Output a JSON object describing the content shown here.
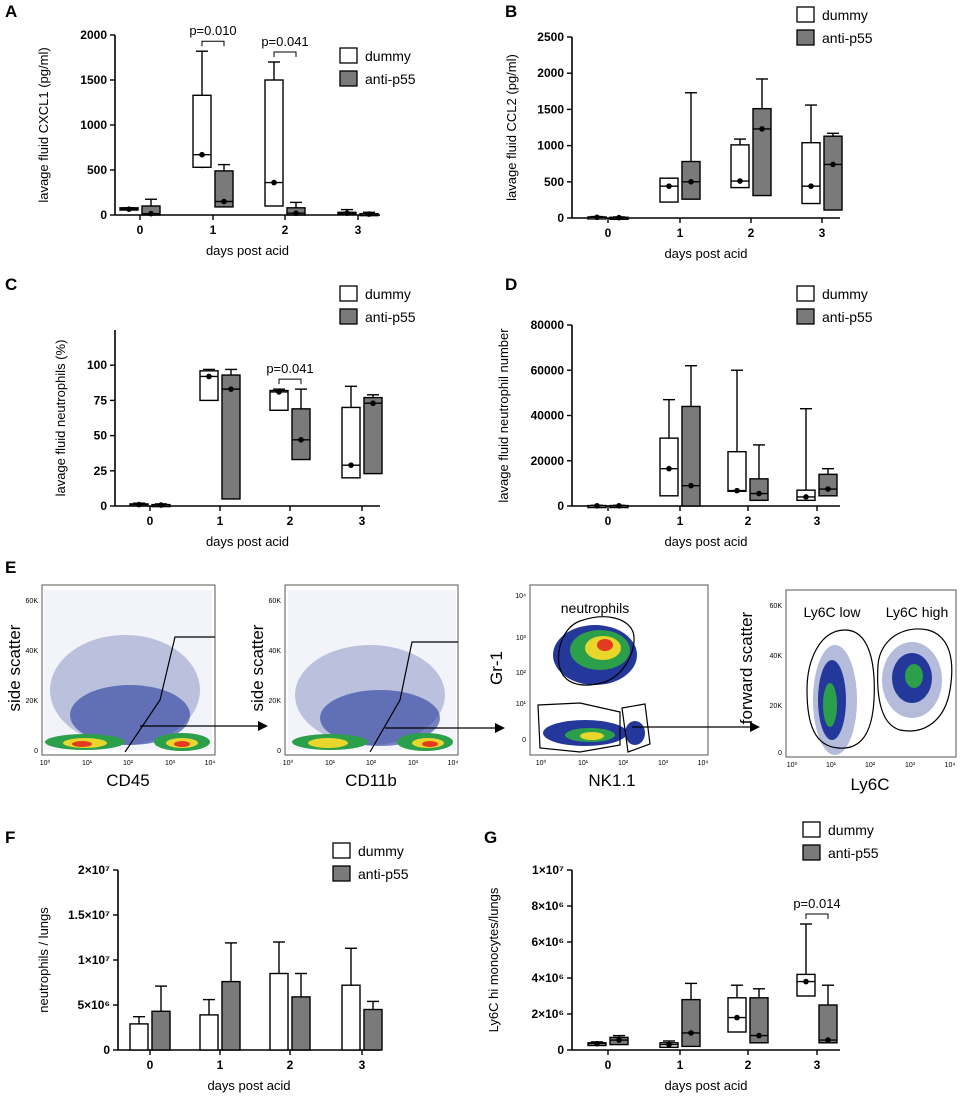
{
  "panel_e": {
    "letter": "E",
    "plots": [
      {
        "y_label": "side scatter",
        "x_label": "CD45",
        "y_ticks": [
          "60K",
          "40K",
          "20K",
          "0"
        ],
        "x_ticks": [
          "10⁰",
          "10¹",
          "10²",
          "10³",
          "10⁴"
        ]
      },
      {
        "y_label": "side scatter",
        "x_label": "CD11b",
        "y_ticks": [
          "60K",
          "40K",
          "20K",
          "0"
        ],
        "x_ticks": [
          "10⁰",
          "10¹",
          "10²",
          "10³",
          "10⁴"
        ]
      },
      {
        "y_label": "Gr-1",
        "x_label": "NK1.1",
        "gate_label": "neutrophils",
        "y_ticks": [
          "10⁴",
          "10³",
          "10²",
          "10¹",
          "0"
        ],
        "x_ticks": [
          "10⁰",
          "10¹",
          "10²",
          "10³",
          "10⁴"
        ]
      },
      {
        "y_label": "forward scatter",
        "x_label": "Ly6C",
        "gate_labels": [
          "Ly6C low",
          "Ly6C high"
        ],
        "y_ticks": [
          "60K",
          "40K",
          "20K",
          "0"
        ],
        "x_ticks": [
          "10⁰",
          "10¹",
          "10²",
          "10³",
          "10⁴"
        ]
      }
    ]
  },
  "chart_data": [
    {
      "panel": "A",
      "type": "box",
      "ylabel": "lavage fluid CXCL1 (pg/ml)",
      "xlabel": "days post acid",
      "categories": [
        "0",
        "1",
        "2",
        "3"
      ],
      "ylim": [
        0,
        2000
      ],
      "yticks": [
        0,
        500,
        1000,
        1500,
        2000
      ],
      "legend": [
        "dummy",
        "anti-p55"
      ],
      "series": [
        {
          "name": "dummy",
          "boxes": [
            {
              "min": 50,
              "q1": 55,
              "median": 65,
              "q3": 80,
              "max": 80
            },
            {
              "min": 520,
              "q1": 530,
              "median": 670,
              "q3": 1330,
              "max": 1820
            },
            {
              "min": 100,
              "q1": 100,
              "median": 360,
              "q3": 1500,
              "max": 1700
            },
            {
              "min": 5,
              "q1": 10,
              "median": 20,
              "q3": 30,
              "max": 60
            }
          ]
        },
        {
          "name": "anti-p55",
          "boxes": [
            {
              "min": 0,
              "q1": 0,
              "median": 15,
              "q3": 100,
              "max": 175
            },
            {
              "min": 90,
              "q1": 90,
              "median": 150,
              "q3": 490,
              "max": 560
            },
            {
              "min": 0,
              "q1": 0,
              "median": 20,
              "q3": 80,
              "max": 140
            },
            {
              "min": 0,
              "q1": 0,
              "median": 10,
              "q3": 15,
              "max": 30
            }
          ]
        }
      ],
      "annotations": [
        {
          "text": "p=0.010",
          "category": 1
        },
        {
          "text": "p=0.041",
          "category": 2
        }
      ]
    },
    {
      "panel": "B",
      "type": "box",
      "ylabel": "lavage fluid CCL2 (pg/ml)",
      "xlabel": "days post acid",
      "categories": [
        "0",
        "1",
        "2",
        "3"
      ],
      "ylim": [
        0,
        2500
      ],
      "yticks": [
        0,
        500,
        1000,
        1500,
        2000,
        2500
      ],
      "legend": [
        "dummy",
        "anti-p55"
      ],
      "series": [
        {
          "name": "dummy",
          "boxes": [
            {
              "min": 0,
              "q1": 5,
              "median": 10,
              "q3": 15,
              "max": 20
            },
            {
              "min": 220,
              "q1": 220,
              "median": 440,
              "q3": 550,
              "max": 550
            },
            {
              "min": 420,
              "q1": 420,
              "median": 510,
              "q3": 1010,
              "max": 1090
            },
            {
              "min": 200,
              "q1": 200,
              "median": 440,
              "q3": 1040,
              "max": 1560
            }
          ]
        },
        {
          "name": "anti-p55",
          "boxes": [
            {
              "min": 0,
              "q1": 0,
              "median": 5,
              "q3": 10,
              "max": 15
            },
            {
              "min": 260,
              "q1": 260,
              "median": 500,
              "q3": 780,
              "max": 1730
            },
            {
              "min": 310,
              "q1": 310,
              "median": 1230,
              "q3": 1510,
              "max": 1920
            },
            {
              "min": 110,
              "q1": 110,
              "median": 740,
              "q3": 1130,
              "max": 1170
            }
          ]
        }
      ],
      "annotations": []
    },
    {
      "panel": "C",
      "type": "box",
      "ylabel": "lavage fluid neutrophils (%)",
      "xlabel": "days post acid",
      "categories": [
        "0",
        "1",
        "2",
        "3"
      ],
      "ylim": [
        0,
        125
      ],
      "yticks": [
        0,
        25,
        50,
        75,
        100
      ],
      "legend": [
        "dummy",
        "anti-p55"
      ],
      "series": [
        {
          "name": "dummy",
          "boxes": [
            {
              "min": 0.5,
              "q1": 0.5,
              "median": 1,
              "q3": 1.5,
              "max": 2
            },
            {
              "min": 75,
              "q1": 75,
              "median": 92,
              "q3": 96,
              "max": 97
            },
            {
              "min": 68,
              "q1": 68,
              "median": 81,
              "q3": 82,
              "max": 83
            },
            {
              "min": 20,
              "q1": 20,
              "median": 29,
              "q3": 70,
              "max": 85
            }
          ]
        },
        {
          "name": "anti-p55",
          "boxes": [
            {
              "min": 0.2,
              "q1": 0.2,
              "median": 0.7,
              "q3": 1,
              "max": 1.5
            },
            {
              "min": 5,
              "q1": 5,
              "median": 83,
              "q3": 93,
              "max": 97
            },
            {
              "min": 33,
              "q1": 33,
              "median": 47,
              "q3": 69,
              "max": 83
            },
            {
              "min": 23,
              "q1": 23,
              "median": 73,
              "q3": 77,
              "max": 79
            }
          ]
        }
      ],
      "annotations": [
        {
          "text": "p=0.041",
          "category": 2
        }
      ]
    },
    {
      "panel": "D",
      "type": "box",
      "ylabel": "lavage fluid neutrophil number",
      "xlabel": "days post acid",
      "categories": [
        "0",
        "1",
        "2",
        "3"
      ],
      "ylim": [
        0,
        80000
      ],
      "yticks": [
        0,
        20000,
        40000,
        60000,
        80000
      ],
      "legend": [
        "dummy",
        "anti-p55"
      ],
      "series": [
        {
          "name": "dummy",
          "boxes": [
            {
              "min": 0,
              "q1": 0,
              "median": 100,
              "q3": 200,
              "max": 300
            },
            {
              "min": 4500,
              "q1": 4500,
              "median": 16500,
              "q3": 30000,
              "max": 47000
            },
            {
              "min": 6500,
              "q1": 6500,
              "median": 6800,
              "q3": 24000,
              "max": 60000
            },
            {
              "min": 2500,
              "q1": 2500,
              "median": 4000,
              "q3": 7000,
              "max": 43000
            }
          ]
        },
        {
          "name": "anti-p55",
          "boxes": [
            {
              "min": 0,
              "q1": 0,
              "median": 100,
              "q3": 200,
              "max": 300
            },
            {
              "min": 0,
              "q1": 0,
              "median": 9000,
              "q3": 44000,
              "max": 62000
            },
            {
              "min": 2500,
              "q1": 2500,
              "median": 5500,
              "q3": 12000,
              "max": 27000
            },
            {
              "min": 4500,
              "q1": 4500,
              "median": 7500,
              "q3": 14000,
              "max": 16500
            }
          ]
        }
      ],
      "annotations": []
    },
    {
      "panel": "F",
      "type": "bar",
      "ylabel": "neutrophils / lungs",
      "xlabel": "days post acid",
      "categories": [
        "0",
        "1",
        "2",
        "3"
      ],
      "ylim": [
        0,
        20000000
      ],
      "yticks": [
        0,
        5000000,
        10000000,
        15000000,
        20000000
      ],
      "ytick_labels": [
        "0",
        "5×10⁶",
        "1×10⁷",
        "1.5×10⁷",
        "2×10⁷"
      ],
      "legend": [
        "dummy",
        "anti-p55"
      ],
      "series": [
        {
          "name": "dummy",
          "values": [
            2900000,
            3900000,
            8500000,
            7200000
          ],
          "errors": [
            800000,
            1700000,
            3500000,
            4100000
          ]
        },
        {
          "name": "anti-p55",
          "values": [
            4300000,
            7600000,
            5900000,
            4500000
          ],
          "errors": [
            2800000,
            4300000,
            2600000,
            900000
          ]
        }
      ]
    },
    {
      "panel": "G",
      "type": "box",
      "ylabel": "Ly6C hi monocytes/lungs",
      "xlabel": "days post acid",
      "categories": [
        "0",
        "1",
        "2",
        "3"
      ],
      "ylim": [
        0,
        10000000
      ],
      "yticks": [
        0,
        2000000,
        4000000,
        6000000,
        8000000,
        10000000
      ],
      "ytick_labels": [
        "0",
        "2×10⁶",
        "4×10⁶",
        "6×10⁶",
        "8×10⁶",
        "1×10⁷"
      ],
      "legend": [
        "dummy",
        "anti-p55"
      ],
      "series": [
        {
          "name": "dummy",
          "boxes": [
            {
              "min": 250000,
              "q1": 250000,
              "median": 350000,
              "q3": 400000,
              "max": 450000
            },
            {
              "min": 150000,
              "q1": 150000,
              "median": 300000,
              "q3": 400000,
              "max": 500000
            },
            {
              "min": 1000000,
              "q1": 1000000,
              "median": 1800000,
              "q3": 2900000,
              "max": 3600000
            },
            {
              "min": 3000000,
              "q1": 3000000,
              "median": 3800000,
              "q3": 4200000,
              "max": 7000000
            }
          ]
        },
        {
          "name": "anti-p55",
          "boxes": [
            {
              "min": 300000,
              "q1": 300000,
              "median": 550000,
              "q3": 700000,
              "max": 800000
            },
            {
              "min": 200000,
              "q1": 200000,
              "median": 950000,
              "q3": 2800000,
              "max": 3700000
            },
            {
              "min": 400000,
              "q1": 400000,
              "median": 800000,
              "q3": 2900000,
              "max": 3400000
            },
            {
              "min": 400000,
              "q1": 400000,
              "median": 550000,
              "q3": 2500000,
              "max": 3600000
            }
          ]
        }
      ],
      "annotations": [
        {
          "text": "p=0.014",
          "category": 3
        }
      ]
    }
  ]
}
